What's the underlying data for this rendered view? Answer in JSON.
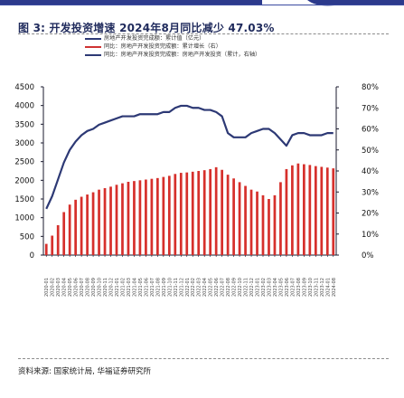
{
  "figure": {
    "title": "图 3: 开发投资增速 2024年8月同比减少 47.03%",
    "source": "资料来源: 国家统计局, 华福证券研究所"
  },
  "colors": {
    "bar": "#d6302c",
    "rate_line": "#cf3333",
    "ratio_line": "#2d3975",
    "axis": "#1a1a2e",
    "title": "#1f2a5c"
  },
  "chart_data": {
    "type": "bar",
    "title": "图 3: 开发投资增速 2024年8月同比减少 47.03%",
    "legend_position": "top-center",
    "legend": [
      "房地产开发投资完成额：累计值（亿元）",
      "同比：房地产开发投资完成额：累计增长（右）",
      "同比：房地产开发投资完成额：房地产开发投资（累计，右轴）"
    ],
    "yleft_ticks": [
      "4500",
      "4000",
      "3500",
      "3000",
      "2500",
      "2000",
      "1500",
      "1000",
      "500",
      "0"
    ],
    "yright_ticks": [
      "80%",
      "70%",
      "60%",
      "50%",
      "40%",
      "30%",
      "20%",
      "10%",
      "0%"
    ],
    "ylim_left": [
      0,
      4500
    ],
    "ylim_right": [
      0,
      80
    ],
    "grid": false,
    "series": [
      {
        "name": "房地产开发投资完成额：累计值（亿元）",
        "type": "bar",
        "axis": "left",
        "values": [
          300,
          520,
          800,
          1150,
          1350,
          1480,
          1560,
          1620,
          1680,
          1750,
          1790,
          1830,
          1880,
          1920,
          1960,
          1980,
          2000,
          2020,
          2040,
          2060,
          2090,
          2120,
          2170,
          2200,
          2210,
          2230,
          2250,
          2270,
          2300,
          2350,
          2280,
          2150,
          2050,
          1950,
          1850,
          1750,
          1700,
          1600,
          1500,
          1600,
          1950,
          2300,
          2400,
          2450,
          2430,
          2410,
          2380,
          2360,
          2340,
          2320
        ]
      },
      {
        "name": "同比：房地产开发投资完成额：累计增长（右）",
        "type": "line",
        "axis": "right",
        "values": [
          null,
          null,
          null,
          null,
          null,
          null,
          null,
          null,
          null,
          null,
          null,
          null,
          null,
          null,
          null,
          null,
          null,
          null,
          null,
          null,
          null,
          null,
          null,
          null,
          null,
          null,
          null,
          null,
          null,
          null,
          null,
          null,
          null,
          null,
          null,
          null,
          null,
          null,
          null,
          null,
          null,
          null,
          null,
          null,
          null,
          null,
          null,
          null,
          null,
          null
        ]
      },
      {
        "name": "同比：房地产开发投资完成额：房地产开发投资（累计，右轴）",
        "type": "line",
        "axis": "right",
        "values": [
          22,
          28,
          36,
          44,
          50,
          54,
          57,
          59,
          60,
          62,
          63,
          64,
          65,
          66,
          66,
          66,
          67,
          67,
          67,
          67,
          68,
          68,
          70,
          71,
          71,
          70,
          70,
          69,
          69,
          68,
          66,
          58,
          56,
          56,
          56,
          58,
          59,
          60,
          60,
          58,
          55,
          52,
          57,
          58,
          58,
          57,
          57,
          57,
          58,
          58
        ]
      }
    ],
    "categories": [
      "2020-01",
      "2020-02",
      "2020-03",
      "2020-04",
      "2020-05",
      "2020-06",
      "2020-07",
      "2020-08",
      "2020-09",
      "2020-10",
      "2020-11",
      "2020-12",
      "2021-01",
      "2021-02",
      "2021-03",
      "2021-04",
      "2021-05",
      "2021-06",
      "2021-07",
      "2021-08",
      "2021-09",
      "2021-10",
      "2021-11",
      "2021-12",
      "2022-01",
      "2022-02",
      "2022-03",
      "2022-04",
      "2022-05",
      "2022-06",
      "2022-07",
      "2022-08",
      "2022-09",
      "2022-10",
      "2022-11",
      "2022-12",
      "2023-01",
      "2023-02",
      "2023-03",
      "2023-04",
      "2023-05",
      "2023-06",
      "2023-07",
      "2023-08",
      "2023-09",
      "2023-10",
      "2023-11",
      "2023-12",
      "2024-01",
      "2024-08"
    ]
  }
}
